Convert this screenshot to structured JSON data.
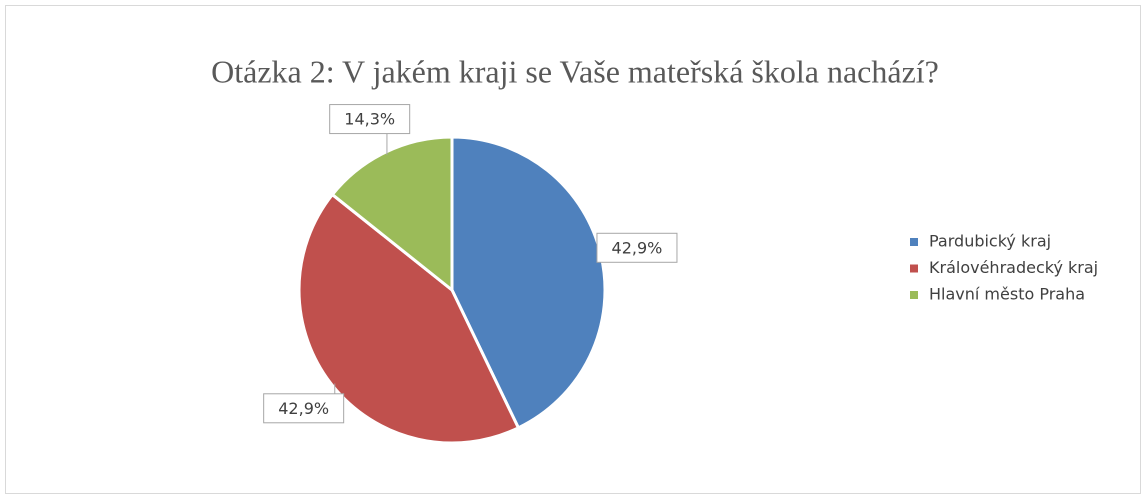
{
  "chart_data": {
    "type": "pie",
    "title": "Otázka 2: V jakém kraji se Vaše mateřská škola nachází?",
    "categories": [
      "Pardubický kraj",
      "Královéhradecký kraj",
      "Hlavní město Praha"
    ],
    "values": [
      42.9,
      42.9,
      14.3
    ],
    "value_labels": [
      "42,9%",
      "42,9%",
      "14,3%"
    ],
    "colors": [
      "#4f81bd",
      "#c0504d",
      "#9bbb59"
    ],
    "legend": "right"
  }
}
